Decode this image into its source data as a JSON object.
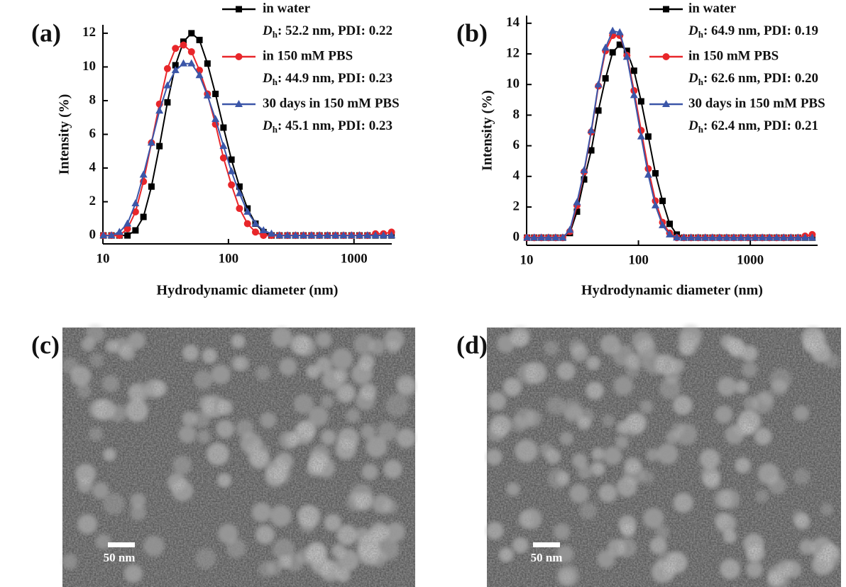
{
  "chart_data": [
    {
      "type": "line",
      "panel_label": "(a)",
      "x_label": "Hydrodynamic diameter (nm)",
      "y_label": "Intensity (%)",
      "xscale": "log",
      "xlim": [
        10,
        2000
      ],
      "xticks": [
        10,
        100,
        1000
      ],
      "ylim": [
        -0.5,
        12.5
      ],
      "yticks": [
        0,
        2,
        4,
        6,
        8,
        10,
        12
      ],
      "x": [
        10.1,
        11.7,
        13.54,
        15.69,
        18.17,
        21.04,
        24.36,
        28.21,
        32.67,
        37.84,
        43.82,
        50.75,
        58.77,
        68.06,
        78.82,
        91.28,
        105.7,
        122.4,
        141.8,
        164.2,
        190.1,
        220.2,
        255.0,
        295.3,
        342.0,
        396.1,
        458.7,
        531.2,
        615.1,
        712.4,
        825.0,
        955.4,
        1106,
        1281,
        1484,
        1718,
        1990
      ],
      "series": [
        {
          "name": "in water",
          "color": "#000000",
          "marker": "square",
          "note": {
            "symbol": "D",
            "subscript": "h",
            "text": ": 52.2 nm, PDI: 0.22"
          },
          "values": [
            0,
            0,
            0,
            0,
            0.3,
            1.1,
            2.9,
            5.3,
            7.9,
            10.1,
            11.5,
            12.0,
            11.6,
            10.2,
            8.4,
            6.4,
            4.5,
            2.9,
            1.6,
            0.7,
            0.2,
            0,
            0,
            0,
            0,
            0,
            0,
            0,
            0,
            0,
            0,
            0,
            0,
            0,
            0,
            0,
            0
          ]
        },
        {
          "name": "in 150 mM PBS",
          "color": "#e8262a",
          "marker": "circle",
          "note": {
            "symbol": "D",
            "subscript": "h",
            "text": ": 44.9 nm, PDI: 0.23"
          },
          "values": [
            0,
            0,
            0,
            0.4,
            1.4,
            3.2,
            5.5,
            7.8,
            9.9,
            11.1,
            11.3,
            10.9,
            9.8,
            8.4,
            6.6,
            4.6,
            3.0,
            1.6,
            0.7,
            0.2,
            0,
            0,
            0,
            0,
            0,
            0,
            0,
            0,
            0,
            0,
            0,
            0,
            0,
            0,
            0.1,
            0.1,
            0.2
          ]
        },
        {
          "name": "30 days in 150 mM PBS",
          "color": "#3b56a8",
          "marker": "triangle",
          "note": {
            "symbol": "D",
            "subscript": "h",
            "text": ": 45.1 nm, PDI: 0.23"
          },
          "values": [
            0,
            0,
            0.2,
            0.7,
            1.9,
            3.6,
            5.5,
            7.4,
            8.9,
            9.8,
            10.2,
            10.2,
            9.5,
            8.3,
            6.9,
            5.3,
            3.8,
            2.5,
            1.4,
            0.7,
            0.3,
            0.1,
            0,
            0,
            0,
            0,
            0,
            0,
            0,
            0,
            0,
            0,
            0,
            0,
            0,
            0,
            0
          ]
        }
      ]
    },
    {
      "type": "line",
      "panel_label": "(b)",
      "x_label": "Hydrodynamic diameter (nm)",
      "y_label": "Intensity (%)",
      "xscale": "log",
      "xlim": [
        10,
        4000
      ],
      "xticks": [
        10,
        100,
        1000
      ],
      "ylim": [
        -0.5,
        14.5
      ],
      "yticks": [
        0,
        2,
        4,
        6,
        8,
        10,
        12,
        14
      ],
      "x": [
        10.1,
        11.7,
        13.54,
        15.69,
        18.17,
        21.04,
        24.36,
        28.21,
        32.67,
        37.84,
        43.82,
        50.75,
        58.77,
        68.06,
        78.82,
        91.28,
        105.7,
        122.4,
        141.8,
        164.2,
        190.1,
        220.2,
        255.0,
        295.3,
        342.0,
        396.1,
        458.7,
        531.2,
        615.1,
        712.4,
        825.0,
        955.4,
        1106,
        1281,
        1484,
        1718,
        1990,
        2305,
        2669,
        3091,
        3580
      ],
      "series": [
        {
          "name": "in water",
          "color": "#000000",
          "marker": "square",
          "note": {
            "symbol": "D",
            "subscript": "h",
            "text": ": 64.9 nm, PDI: 0.19"
          },
          "values": [
            0,
            0,
            0,
            0,
            0,
            0,
            0.3,
            1.7,
            3.8,
            5.7,
            8.3,
            10.4,
            12.1,
            12.6,
            12.2,
            10.9,
            8.9,
            6.6,
            4.2,
            2.4,
            0.9,
            0.2,
            0,
            0,
            0,
            0,
            0,
            0,
            0,
            0,
            0,
            0,
            0,
            0,
            0,
            0,
            0,
            0,
            0,
            0,
            0
          ]
        },
        {
          "name": "in 150 mM PBS",
          "color": "#e8262a",
          "marker": "circle",
          "note": {
            "symbol": "D",
            "subscript": "h",
            "text": ": 62.6 nm, PDI: 0.20"
          },
          "values": [
            0,
            0,
            0,
            0,
            0,
            0,
            0.4,
            2.1,
            4.3,
            6.9,
            9.9,
            12.2,
            13.2,
            13.2,
            11.9,
            9.6,
            7.0,
            4.5,
            2.4,
            1.0,
            0.3,
            0,
            0,
            0,
            0,
            0,
            0,
            0,
            0,
            0,
            0,
            0,
            0,
            0,
            0,
            0,
            0,
            0,
            0,
            0.1,
            0.2
          ]
        },
        {
          "name": "30 days in 150 mM PBS",
          "color": "#3b56a8",
          "marker": "triangle",
          "note": {
            "symbol": "D",
            "subscript": "h",
            "text": ": 62.4 nm, PDI: 0.21"
          },
          "values": [
            0,
            0,
            0,
            0,
            0,
            0,
            0.5,
            2.3,
            4.4,
            7.0,
            10.0,
            12.4,
            13.5,
            13.4,
            11.8,
            9.3,
            6.6,
            4.1,
            2.1,
            0.8,
            0.2,
            0,
            0,
            0,
            0,
            0,
            0,
            0,
            0,
            0,
            0,
            0,
            0,
            0,
            0,
            0,
            0,
            0,
            0,
            0,
            0
          ]
        }
      ]
    }
  ],
  "images": [
    {
      "panel_label": "(c)",
      "scale_bar": "50 nm"
    },
    {
      "panel_label": "(d)",
      "scale_bar": "50 nm"
    }
  ]
}
